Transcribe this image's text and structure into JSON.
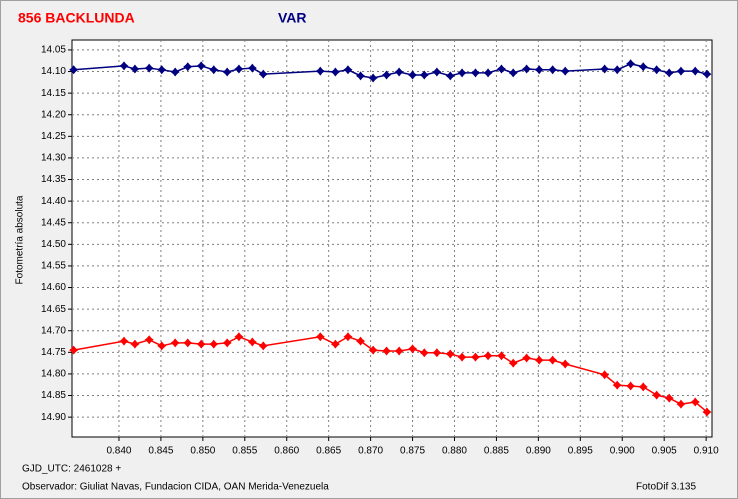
{
  "chart_data": {
    "type": "line",
    "title": "856 BACKLUNDA",
    "subtitle": "VAR",
    "y_label": "Fotometría absoluta",
    "annotations": [
      "GJD_UTC: 2461028 +",
      "Observador: Giuliat Navas, Fundacion CIDA, OAN  Merida-Venezuela",
      "FotoDif 3.135"
    ],
    "x": [
      0.8346,
      0.8406,
      0.8419,
      0.8436,
      0.8451,
      0.8467,
      0.8482,
      0.8498,
      0.8513,
      0.8529,
      0.8543,
      0.8559,
      0.8572,
      0.864,
      0.8658,
      0.8673,
      0.8688,
      0.8703,
      0.8719,
      0.8734,
      0.875,
      0.8764,
      0.8779,
      0.8795,
      0.8809,
      0.8825,
      0.884,
      0.8856,
      0.887,
      0.8886,
      0.8901,
      0.8917,
      0.8932,
      0.8979,
      0.8994,
      0.901,
      0.9025,
      0.9041,
      0.9056,
      0.907,
      0.9087,
      0.9101
    ],
    "series": [
      {
        "name": "VAR",
        "color": "#000080",
        "values": [
          14.096,
          14.087,
          14.094,
          14.092,
          14.096,
          14.101,
          14.089,
          14.087,
          14.096,
          14.101,
          14.094,
          14.092,
          14.106,
          14.099,
          14.101,
          14.096,
          14.11,
          14.115,
          14.108,
          14.101,
          14.108,
          14.108,
          14.101,
          14.11,
          14.103,
          14.103,
          14.103,
          14.094,
          14.103,
          14.094,
          14.096,
          14.096,
          14.099,
          14.094,
          14.096,
          14.082,
          14.089,
          14.096,
          14.103,
          14.099,
          14.099,
          14.106
        ]
      },
      {
        "name": "856 BACKLUNDA",
        "color": "#ff0000",
        "values": [
          14.745,
          14.724,
          14.731,
          14.721,
          14.735,
          14.728,
          14.728,
          14.731,
          14.731,
          14.728,
          14.714,
          14.726,
          14.735,
          14.714,
          14.731,
          14.714,
          14.724,
          14.745,
          14.747,
          14.747,
          14.742,
          14.751,
          14.751,
          14.754,
          14.761,
          14.761,
          14.758,
          14.758,
          14.775,
          14.763,
          14.768,
          14.768,
          14.777,
          14.802,
          14.826,
          14.828,
          14.83,
          14.849,
          14.856,
          14.87,
          14.865,
          14.888
        ]
      }
    ],
    "xlim": [
      0.8344,
      0.9107
    ],
    "ylim": [
      14.946,
      14.027
    ],
    "xticks": [
      {
        "value": 0.84,
        "label": "0.840"
      },
      0.845,
      {
        "value": 0.85,
        "label": "0.850"
      },
      0.855,
      {
        "value": 0.86,
        "label": "0.860"
      },
      0.865,
      {
        "value": 0.87,
        "label": "0.870"
      },
      0.875,
      {
        "value": 0.88,
        "label": "0.880"
      },
      0.885,
      {
        "value": 0.89,
        "label": "0.890"
      },
      0.895,
      {
        "value": 0.9,
        "label": "0.900"
      },
      0.905,
      {
        "value": 0.91,
        "label": "0.910"
      }
    ],
    "yticks": [
      14.05,
      {
        "value": 14.1,
        "label": "14.10"
      },
      14.15,
      {
        "value": 14.2,
        "label": "14.20"
      },
      14.25,
      {
        "value": 14.3,
        "label": "14.30"
      },
      14.35,
      {
        "value": 14.4,
        "label": "14.40"
      },
      14.45,
      {
        "value": 14.5,
        "label": "14.50"
      },
      14.55,
      {
        "value": 14.6,
        "label": "14.60"
      },
      14.65,
      {
        "value": 14.7,
        "label": "14.70"
      },
      14.75,
      {
        "value": 14.8,
        "label": "14.80"
      },
      14.85,
      {
        "value": 14.9,
        "label": "14.90"
      }
    ],
    "grid": true
  }
}
